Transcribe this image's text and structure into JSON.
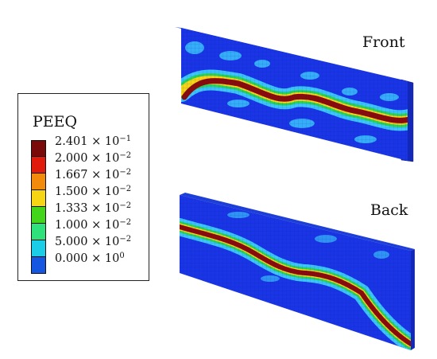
{
  "legend": {
    "title": "PEEQ",
    "entries": [
      {
        "mantissa": "2.401",
        "exponent": "−1",
        "color": "#7a0a0a"
      },
      {
        "mantissa": "2.000",
        "exponent": "−2",
        "color": "#e01b0b"
      },
      {
        "mantissa": "1.667",
        "exponent": "−2",
        "color": "#f28a0c"
      },
      {
        "mantissa": "1.500",
        "exponent": "−2",
        "color": "#f5d514"
      },
      {
        "mantissa": "1.333",
        "exponent": "−2",
        "color": "#43d51a"
      },
      {
        "mantissa": "1.000",
        "exponent": "−2",
        "color": "#2fe17a"
      },
      {
        "mantissa": "5.000",
        "exponent": "−2",
        "color": "#1ccde8"
      },
      {
        "mantissa": "0.000",
        "exponent": "0",
        "color": "#1557e0"
      }
    ]
  },
  "views": {
    "front": "Front",
    "back": "Back"
  },
  "colors": {
    "base": "#1a35e6",
    "light": "#3fd6ff",
    "green": "#27d35a",
    "core": "#8b0a0a"
  }
}
